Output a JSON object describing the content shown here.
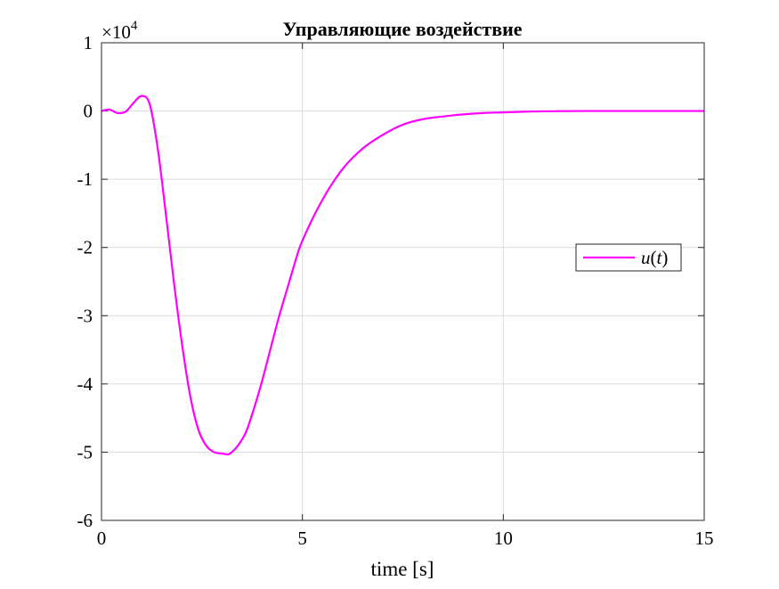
{
  "chart_data": {
    "type": "line",
    "title": "Управляющие воздействие",
    "xlabel": "time [s]",
    "ylabel": "",
    "y_multiplier": "×10",
    "y_multiplier_exponent": "4",
    "xlim": [
      0,
      15
    ],
    "ylim": [
      -6,
      1
    ],
    "xticks": [
      0,
      5,
      10,
      15
    ],
    "yticks": [
      1,
      0,
      -1,
      -2,
      -3,
      -4,
      -5,
      -6
    ],
    "x_tick_labels": [
      "0",
      "5",
      "10",
      "15"
    ],
    "y_tick_labels": [
      "1",
      "0",
      "-1",
      "-2",
      "-3",
      "-4",
      "-5",
      "-6"
    ],
    "grid": true,
    "legend_position": "right-middle",
    "series": [
      {
        "name": "u(t)",
        "legend_parts": [
          "u",
          "(",
          "t",
          ")"
        ],
        "color": "#ff00ff",
        "x": [
          0,
          0.2,
          0.4,
          0.6,
          0.8,
          1.0,
          1.2,
          1.4,
          1.6,
          1.8,
          2.0,
          2.2,
          2.4,
          2.6,
          2.8,
          3.0,
          3.1,
          3.2,
          3.4,
          3.6,
          3.8,
          4.0,
          4.2,
          4.4,
          4.6,
          4.8,
          5.0,
          5.5,
          6.0,
          6.5,
          7.0,
          7.5,
          8.0,
          8.5,
          9.0,
          9.5,
          10.0,
          10.5,
          11.0,
          12.0,
          13.0,
          14.0,
          15.0
        ],
        "y": [
          0,
          0.02,
          -0.03,
          -0.01,
          0.12,
          0.22,
          0.1,
          -0.55,
          -1.5,
          -2.5,
          -3.4,
          -4.15,
          -4.65,
          -4.9,
          -5.0,
          -5.02,
          -5.03,
          -5.02,
          -4.9,
          -4.7,
          -4.35,
          -3.95,
          -3.5,
          -3.05,
          -2.65,
          -2.25,
          -1.9,
          -1.3,
          -0.85,
          -0.55,
          -0.35,
          -0.2,
          -0.12,
          -0.08,
          -0.05,
          -0.03,
          -0.02,
          -0.01,
          -0.005,
          0,
          0,
          0,
          0
        ]
      }
    ]
  }
}
